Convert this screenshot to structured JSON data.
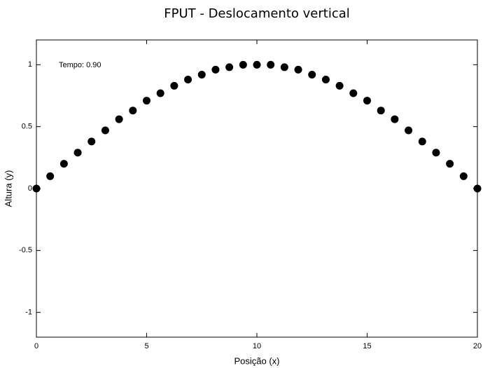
{
  "chart_data": {
    "type": "scatter",
    "title": "FPUT - Deslocamento vertical",
    "xlabel": "Posição (x)",
    "ylabel": "Altura (y)",
    "annotation": "Tempo: 0.90",
    "color": "#000000",
    "x": [
      0,
      0.625,
      1.25,
      1.875,
      2.5,
      3.125,
      3.75,
      4.375,
      5,
      5.625,
      6.25,
      6.875,
      7.5,
      8.125,
      8.75,
      9.375,
      10,
      10.625,
      11.25,
      11.875,
      12.5,
      13.125,
      13.75,
      14.375,
      15,
      15.625,
      16.25,
      16.875,
      17.5,
      18.125,
      18.75,
      19.375,
      20
    ],
    "values": [
      0,
      0.1,
      0.2,
      0.29,
      0.38,
      0.47,
      0.56,
      0.63,
      0.71,
      0.77,
      0.83,
      0.88,
      0.92,
      0.96,
      0.98,
      1.0,
      1.0,
      1.0,
      0.98,
      0.96,
      0.92,
      0.88,
      0.83,
      0.77,
      0.71,
      0.63,
      0.56,
      0.47,
      0.38,
      0.29,
      0.2,
      0.1,
      0
    ],
    "xlim": [
      0,
      20
    ],
    "ylim": [
      -1.2,
      1.2
    ],
    "xticks": [
      0,
      5,
      10,
      15,
      20
    ],
    "yticks": [
      -1,
      -0.5,
      0,
      0.5,
      1
    ],
    "grid": false
  }
}
